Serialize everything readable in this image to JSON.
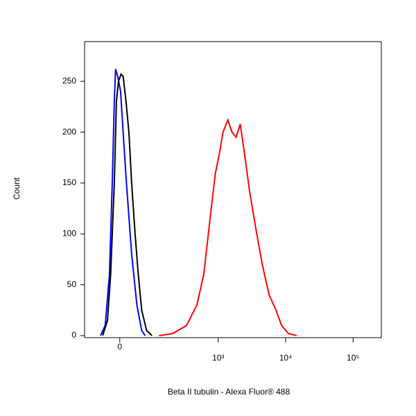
{
  "chart_data": {
    "type": "line",
    "xlabel": "Beta II tubulin - Alexa Fluor® 488",
    "ylabel": "Count",
    "xscale": "biexponential",
    "xlim": [
      -105,
      262144
    ],
    "ylim": [
      -2,
      289
    ],
    "xticks": [
      0,
      {
        "value": 1000,
        "label": "10³"
      },
      {
        "value": 10000,
        "label": "10⁴"
      },
      {
        "value": 100000,
        "label": "10⁵"
      }
    ],
    "yticks": [
      0,
      50,
      100,
      150,
      200,
      250
    ],
    "grid": false,
    "series": [
      {
        "color": "#0000ff",
        "x": [
          -49,
          -36,
          -25,
          -18,
          -13,
          -10,
          -5,
          2,
          8,
          16,
          29,
          43,
          57,
          68
        ],
        "values": [
          0,
          10,
          60,
          150,
          230,
          262,
          255,
          240,
          200,
          150,
          80,
          30,
          5,
          0
        ]
      },
      {
        "color": "#000000",
        "x": [
          -43,
          -30,
          -22,
          -13,
          -8,
          -3,
          3,
          8,
          15,
          22,
          29,
          38,
          47,
          57,
          73,
          93
        ],
        "values": [
          0,
          15,
          60,
          150,
          230,
          250,
          257,
          255,
          230,
          200,
          150,
          100,
          60,
          25,
          5,
          0
        ]
      },
      {
        "color": "#ff0000",
        "x": [
          124,
          206,
          336,
          480,
          609,
          771,
          910,
          1047,
          1178,
          1390,
          1600,
          1843,
          2122,
          2444,
          2948,
          3729,
          4499,
          5694,
          7203,
          8691,
          10995,
          14574
        ],
        "values": [
          0,
          2,
          10,
          30,
          60,
          120,
          160,
          180,
          200,
          212,
          200,
          195,
          208,
          180,
          140,
          100,
          70,
          40,
          25,
          10,
          2,
          0
        ]
      }
    ]
  }
}
